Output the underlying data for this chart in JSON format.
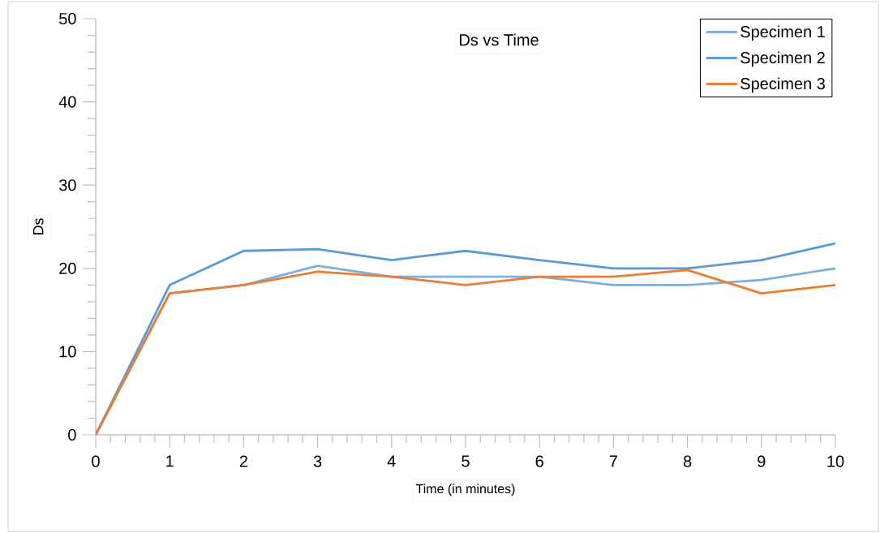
{
  "chart_data": {
    "type": "line",
    "title": "Ds  vs Time",
    "xlabel": "Time (in minutes)",
    "ylabel": "Ds",
    "x": [
      0,
      1,
      2,
      3,
      4,
      5,
      6,
      7,
      8,
      9,
      10
    ],
    "series": [
      {
        "name": "Specimen 1",
        "color": "#7cafdd",
        "values": [
          0,
          17,
          18,
          20.3,
          19,
          19,
          19,
          18,
          18,
          18.6,
          20
        ]
      },
      {
        "name": "Specimen 2",
        "color": "#5b9bd5",
        "values": [
          0,
          18,
          22.1,
          22.3,
          21,
          22.1,
          21,
          20,
          20,
          21,
          23
        ]
      },
      {
        "name": "Specimen 3",
        "color": "#ed7d31",
        "values": [
          0,
          17,
          18,
          19.6,
          19,
          18,
          19,
          19,
          19.8,
          17,
          18
        ]
      }
    ],
    "xlim": [
      0,
      10
    ],
    "ylim": [
      0,
      50
    ],
    "xticks": [
      0,
      1,
      2,
      3,
      4,
      5,
      6,
      7,
      8,
      9,
      10
    ],
    "yticks": [
      0,
      10,
      20,
      30,
      40,
      50
    ],
    "grid": false,
    "legend": "top right",
    "marker": "none",
    "line_style": "solid"
  }
}
